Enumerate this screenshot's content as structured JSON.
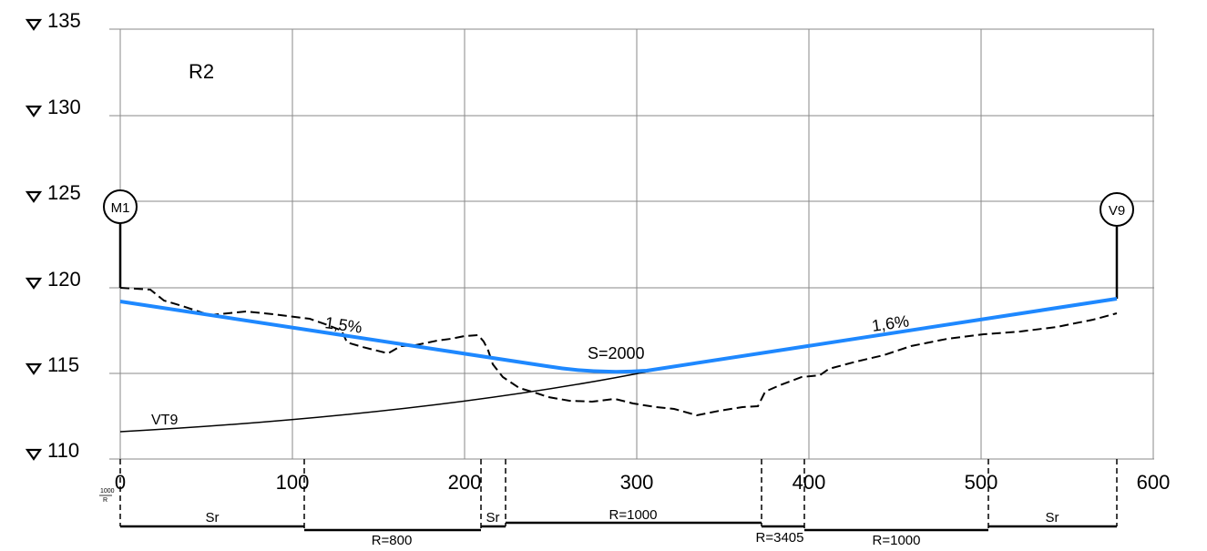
{
  "elevation_labels": [
    "135",
    "130",
    "125",
    "120",
    "115",
    "110"
  ],
  "chainage_labels": [
    "0",
    "100",
    "200",
    "300",
    "400",
    "500",
    "600"
  ],
  "sheet_label": "R2",
  "bubble_start": "M1",
  "bubble_end": "V9",
  "grade_left": "1,5%",
  "grade_right": "1,6%",
  "vertical_curve_label": "S=2000",
  "reference_curve_label": "VT9",
  "curvature_band_label": "1000",
  "curvature_band_label_den": "R",
  "curvature_band": {
    "label_sr_1": "Sr",
    "label_r800": "R=800",
    "label_sr_2": "Sr",
    "label_r1000_a": "R=1000",
    "label_r3405": "R=3405",
    "label_r1000_b": "R=1000",
    "label_sr_3": "Sr"
  },
  "colors": {
    "design_line": "#1e88ff",
    "grid": "#888888",
    "ink": "#000000"
  }
}
